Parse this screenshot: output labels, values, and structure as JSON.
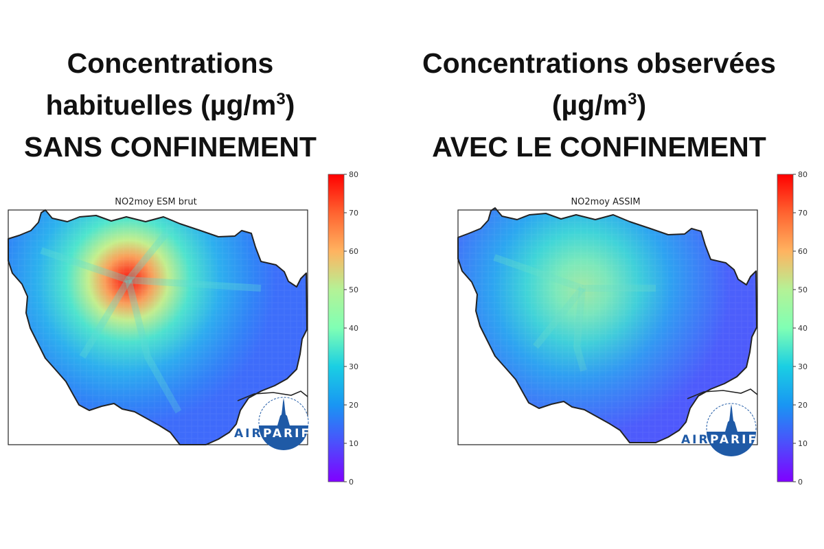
{
  "headlines": {
    "left": {
      "line1": "Concentrations",
      "line2_pre": "habituelles (µg/m",
      "line2_sup": "3",
      "line2_post": ")",
      "line3": "SANS CONFINEMENT"
    },
    "right": {
      "line1": "Concentrations observées",
      "line2_pre": "(µg/m",
      "line2_sup": "3",
      "line2_post": ")",
      "line3": "AVEC LE CONFINEMENT"
    }
  },
  "maps": [
    {
      "title": "NO2moy ESM brut",
      "hotspot_peak": 78,
      "background_level": 14
    },
    {
      "title": "NO2moy ASSIM",
      "hotspot_peak": 52,
      "background_level": 12
    }
  ],
  "colorbar": {
    "ticks": [
      "80",
      "70",
      "60",
      "50",
      "40",
      "30",
      "20",
      "10",
      "0"
    ],
    "min": 0,
    "max": 80,
    "colormap": "rainbow"
  },
  "logo": {
    "part1": "AIR",
    "part2": "PARIF"
  },
  "colors": {
    "logo_blue": "#1f5aa6",
    "outline": "#222222"
  }
}
